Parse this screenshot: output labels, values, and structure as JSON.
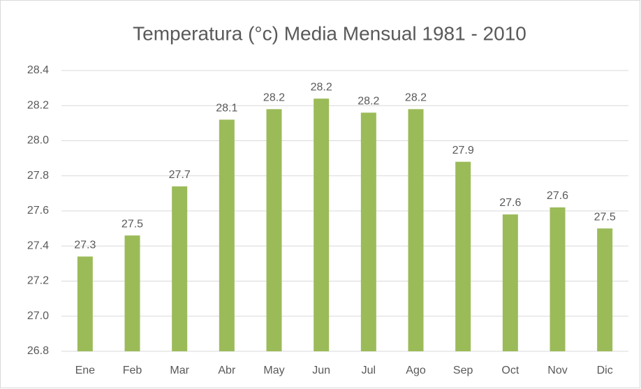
{
  "chart_data": {
    "type": "bar",
    "title": "Temperatura (°c) Media Mensual 1981 - 2010",
    "categories": [
      "Ene",
      "Feb",
      "Mar",
      "Abr",
      "May",
      "Jun",
      "Jul",
      "Ago",
      "Sep",
      "Oct",
      "Nov",
      "Dic"
    ],
    "values": [
      27.34,
      27.46,
      27.74,
      28.12,
      28.18,
      28.24,
      28.16,
      28.18,
      27.88,
      27.58,
      27.62,
      27.5
    ],
    "value_labels": [
      "27.3",
      "27.5",
      "27.7",
      "28.1",
      "28.2",
      "28.2",
      "28.2",
      "28.2",
      "27.9",
      "27.6",
      "27.6",
      "27.5"
    ],
    "color": "#9bbb59",
    "ylim": [
      26.8,
      28.4
    ],
    "yticks": [
      26.8,
      {
        "value": 27,
        "label": "27.0"
      },
      27.2,
      27.4,
      27.6,
      27.8,
      {
        "value": 28,
        "label": "28.0"
      },
      28.2,
      28.4
    ],
    "grid": true
  }
}
